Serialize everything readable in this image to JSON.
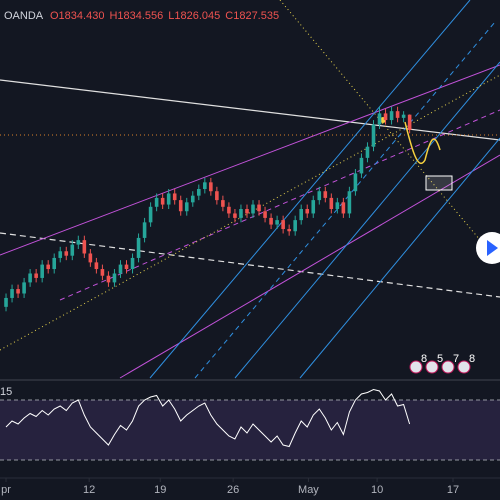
{
  "chart_data": {
    "type": "candlestick",
    "source": "OANDA",
    "ohlc_labels": [
      "O1834.430",
      "H1834.556",
      "L1826.045",
      "C1827.535"
    ],
    "xlim": [
      -1,
      82
    ],
    "xticks": [
      {
        "value": 0,
        "label": "pr"
      },
      {
        "value": 13.8,
        "label": "12"
      },
      {
        "value": 25.6,
        "label": "19"
      },
      {
        "value": 37.7,
        "label": "26"
      },
      {
        "value": 50.2,
        "label": "May"
      },
      {
        "value": 61.6,
        "label": "10"
      },
      {
        "value": 74.2,
        "label": "17"
      }
    ],
    "ylim": [
      1716,
      1886
    ],
    "open": [
      1748,
      1752,
      1756,
      1754,
      1759,
      1763,
      1761,
      1767,
      1765,
      1770,
      1773,
      1771,
      1776,
      1778,
      1772,
      1768,
      1765,
      1762,
      1759,
      1763,
      1767,
      1765,
      1770,
      1779,
      1786,
      1793,
      1797,
      1794,
      1799,
      1796,
      1791,
      1795,
      1798,
      1801,
      1804,
      1800,
      1796,
      1793,
      1790,
      1788,
      1792,
      1790,
      1794,
      1791,
      1788,
      1785,
      1787,
      1783,
      1782,
      1787,
      1792,
      1790,
      1796,
      1800,
      1797,
      1792,
      1795,
      1790,
      1800,
      1808,
      1815,
      1820,
      1830,
      1835,
      1832,
      1836,
      1833,
      1834.43
    ],
    "high": [
      1754,
      1758,
      1758,
      1761,
      1765,
      1765,
      1769,
      1769,
      1772,
      1775,
      1775,
      1778,
      1780,
      1780,
      1774,
      1770,
      1767,
      1764,
      1765,
      1769,
      1769,
      1772,
      1781,
      1788,
      1795,
      1799,
      1799,
      1801,
      1801,
      1798,
      1797,
      1800,
      1803,
      1806,
      1806,
      1802,
      1798,
      1795,
      1792,
      1794,
      1794,
      1796,
      1796,
      1793,
      1790,
      1789,
      1789,
      1785,
      1789,
      1794,
      1794,
      1798,
      1802,
      1802,
      1799,
      1797,
      1797,
      1802,
      1810,
      1817,
      1822,
      1832,
      1838,
      1837,
      1838,
      1838,
      1836,
      1834.556
    ],
    "low": [
      1746,
      1750,
      1752,
      1752,
      1757,
      1759,
      1759,
      1763,
      1763,
      1768,
      1769,
      1769,
      1774,
      1770,
      1766,
      1763,
      1760,
      1757,
      1757,
      1761,
      1763,
      1763,
      1768,
      1777,
      1784,
      1791,
      1792,
      1792,
      1794,
      1789,
      1789,
      1793,
      1796,
      1799,
      1798,
      1794,
      1791,
      1788,
      1786,
      1786,
      1788,
      1788,
      1789,
      1786,
      1783,
      1783,
      1781,
      1780,
      1780,
      1785,
      1788,
      1788,
      1794,
      1795,
      1790,
      1790,
      1788,
      1788,
      1798,
      1806,
      1813,
      1818,
      1828,
      1830,
      1830,
      1831,
      1831,
      1826.045
    ],
    "close": [
      1752,
      1756,
      1754,
      1759,
      1763,
      1761,
      1767,
      1765,
      1770,
      1773,
      1771,
      1776,
      1778,
      1772,
      1768,
      1765,
      1762,
      1759,
      1763,
      1767,
      1765,
      1770,
      1779,
      1786,
      1793,
      1797,
      1794,
      1799,
      1796,
      1791,
      1795,
      1798,
      1801,
      1804,
      1800,
      1796,
      1793,
      1790,
      1788,
      1792,
      1790,
      1794,
      1791,
      1788,
      1785,
      1787,
      1783,
      1782,
      1787,
      1792,
      1790,
      1796,
      1800,
      1797,
      1792,
      1795,
      1790,
      1800,
      1808,
      1815,
      1820,
      1830,
      1835,
      1832,
      1836,
      1833,
      1834.43,
      1827.535
    ],
    "up_color": "#26a69a",
    "down_color": "#ef5350",
    "rsi": {
      "label": "15",
      "ylim": [
        20,
        80
      ],
      "levels": [
        70,
        30
      ],
      "color": "#ffffff",
      "values": [
        52,
        56,
        54,
        58,
        61,
        59,
        63,
        60,
        64,
        66,
        63,
        68,
        70,
        60,
        52,
        48,
        44,
        40,
        47,
        53,
        50,
        56,
        66,
        70,
        72,
        73,
        66,
        70,
        64,
        56,
        60,
        63,
        66,
        68,
        60,
        54,
        50,
        46,
        44,
        52,
        48,
        54,
        50,
        46,
        42,
        46,
        40,
        39,
        48,
        56,
        52,
        60,
        64,
        58,
        50,
        55,
        47,
        62,
        70,
        74,
        75,
        77,
        76,
        70,
        74,
        66,
        67,
        54
      ]
    },
    "events": [
      "8",
      "5",
      "7",
      "8"
    ]
  }
}
